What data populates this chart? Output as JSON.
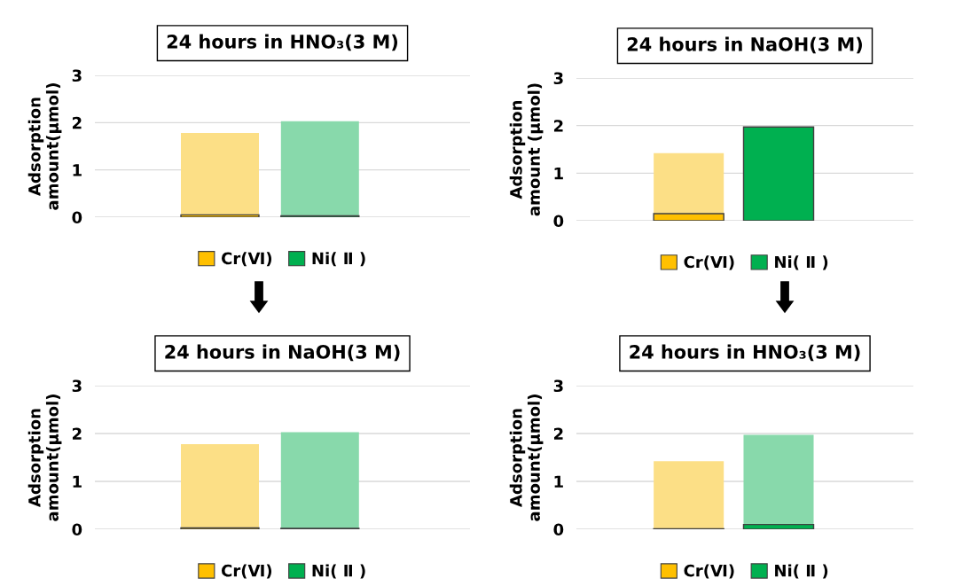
{
  "chart_data": [
    {
      "type": "bar",
      "title": "24 hours in HNO₃(3 M)",
      "ylabel": "Adsorption amount(μmol)",
      "categories": [
        null,
        null
      ],
      "stacked": true,
      "ylim": [
        0,
        3
      ],
      "yticks": [
        0,
        1,
        2,
        3
      ],
      "grid": "y",
      "legend": "bottom",
      "series": [
        {
          "name": "Cr(Ⅵ)",
          "color": "#ffc000",
          "values": [
            0.05,
            null
          ]
        },
        {
          "name": "Ni( Ⅱ )",
          "color": "#00b050",
          "values": [
            null,
            0.03
          ]
        },
        {
          "color": "#fcdf86",
          "values": [
            1.73,
            null
          ]
        },
        {
          "color": "#88d9ab",
          "values": [
            null,
            2.0
          ]
        }
      ]
    },
    {
      "type": "bar",
      "title": "24 hours in NaOH(3 M)",
      "ylabel": "Adsorption amount (μmol)",
      "categories": [
        null,
        null
      ],
      "stacked": true,
      "ylim": [
        0,
        3
      ],
      "yticks": [
        0,
        1,
        2,
        3
      ],
      "grid": "y",
      "legend": "bottom",
      "series": [
        {
          "name": "Cr(Ⅵ)",
          "color": "#ffc000",
          "values": [
            0.15,
            null
          ]
        },
        {
          "name": "Ni( Ⅱ )",
          "color": "#00b050",
          "values": [
            null,
            1.97
          ]
        },
        {
          "color": "#fcdf86",
          "values": [
            1.27,
            null
          ]
        }
      ]
    },
    {
      "type": "bar",
      "title": "24 hours in NaOH(3 M)",
      "ylabel": "Adsorption amount(μmol)",
      "categories": [
        null,
        null
      ],
      "stacked": true,
      "ylim": [
        0,
        3
      ],
      "yticks": [
        0,
        1,
        2,
        3
      ],
      "grid": "y",
      "legend": "bottom",
      "series": [
        {
          "name": "Cr(Ⅵ)",
          "color": "#ffc000",
          "values": [
            0.03,
            null
          ]
        },
        {
          "name": "Ni( Ⅱ )",
          "color": "#00b050",
          "values": [
            null,
            0.02
          ]
        },
        {
          "color": "#fcdf86",
          "values": [
            1.75,
            null
          ]
        },
        {
          "color": "#88d9ab",
          "values": [
            null,
            2.01
          ]
        }
      ]
    },
    {
      "type": "bar",
      "title": "24 hours in HNO₃(3 M)",
      "ylabel": "Adsorption amount(μmol)",
      "categories": [
        null,
        null
      ],
      "stacked": true,
      "ylim": [
        0,
        3
      ],
      "yticks": [
        0,
        1,
        2,
        3
      ],
      "grid": "y",
      "legend": "bottom",
      "series": [
        {
          "name": "Cr(Ⅵ)",
          "color": "#ffc000",
          "values": [
            0.01,
            null
          ]
        },
        {
          "name": "Ni( Ⅱ )",
          "color": "#00b050",
          "values": [
            null,
            0.1
          ]
        },
        {
          "color": "#fcdf86",
          "values": [
            1.41,
            null
          ]
        },
        {
          "color": "#88d9ab",
          "values": [
            null,
            1.87
          ]
        }
      ]
    }
  ]
}
